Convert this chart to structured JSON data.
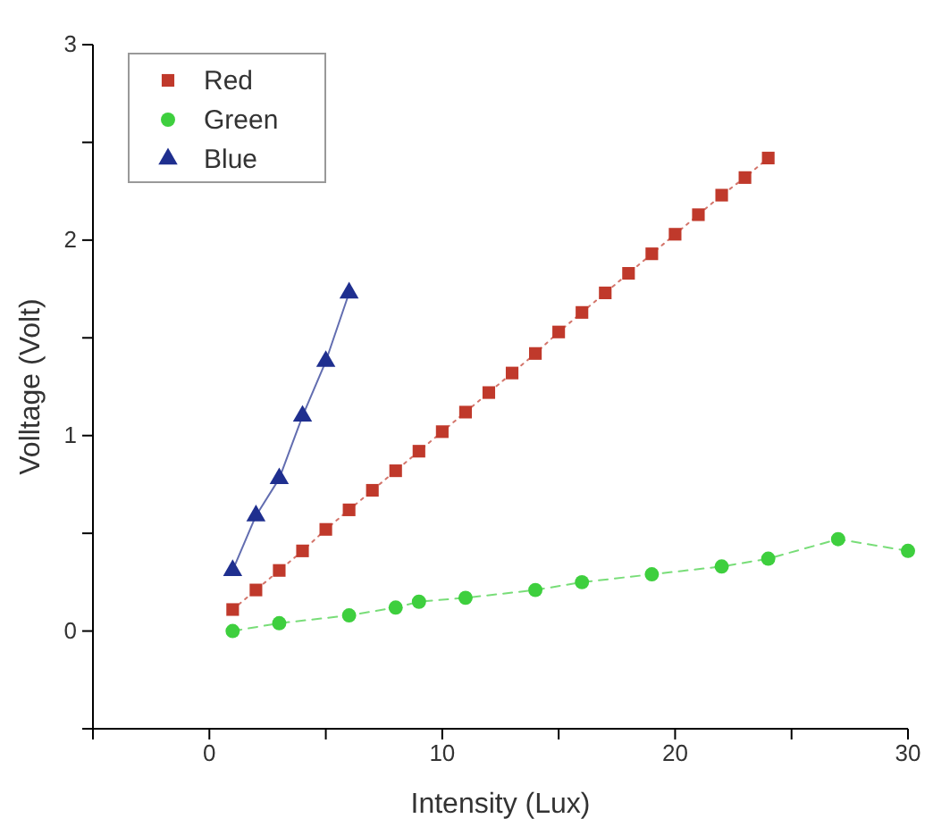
{
  "chart_data": {
    "type": "line",
    "xlabel": "Intensity (Lux)",
    "ylabel": "Volltage (Volt)",
    "xlim": [
      -5,
      30
    ],
    "xticks": [
      {
        "value": -5,
        "label": null
      },
      0,
      {
        "value": 5,
        "label": null
      },
      10,
      {
        "value": 15,
        "label": null
      },
      20,
      {
        "value": 25,
        "label": null
      },
      30
    ],
    "ylim": [
      -0.5,
      3
    ],
    "yticks": [
      {
        "value": -0.5,
        "label": null
      },
      0,
      {
        "value": 0.5,
        "label": null
      },
      1,
      {
        "value": 1.5,
        "label": null
      },
      2,
      {
        "value": 2.5,
        "label": null
      },
      3
    ],
    "grid": false,
    "legend": "top left",
    "series": [
      {
        "name": "Red",
        "color": "#c0392b",
        "marker": "square",
        "line_style": "dotted",
        "x": [
          1,
          2,
          3,
          4,
          5,
          6,
          7,
          8,
          9,
          10,
          11,
          12,
          13,
          14,
          15,
          16,
          17,
          18,
          19,
          20,
          21,
          22,
          23,
          24
        ],
        "values": [
          0.11,
          0.21,
          0.31,
          0.41,
          0.52,
          0.62,
          0.72,
          0.82,
          0.92,
          1.02,
          1.12,
          1.22,
          1.32,
          1.42,
          1.53,
          1.63,
          1.73,
          1.83,
          1.93,
          2.03,
          2.13,
          2.23,
          2.32,
          2.42
        ]
      },
      {
        "name": "Green",
        "color": "#3ecf3e",
        "marker": "circle",
        "line_style": "dashed",
        "x": [
          1,
          3,
          6,
          8,
          9,
          11,
          14,
          16,
          19,
          22,
          24,
          27,
          30
        ],
        "values": [
          0,
          0.04,
          0.08,
          0.12,
          0.15,
          0.17,
          0.21,
          0.25,
          0.29,
          0.33,
          0.37,
          0.47,
          0.41
        ]
      },
      {
        "name": "Blue",
        "color": "#1f2f8f",
        "marker": "triangle",
        "line_style": "solid",
        "x": [
          1,
          2,
          3,
          4,
          5,
          6
        ],
        "values": [
          0.31,
          0.59,
          0.78,
          1.1,
          1.38,
          1.73
        ]
      }
    ]
  }
}
